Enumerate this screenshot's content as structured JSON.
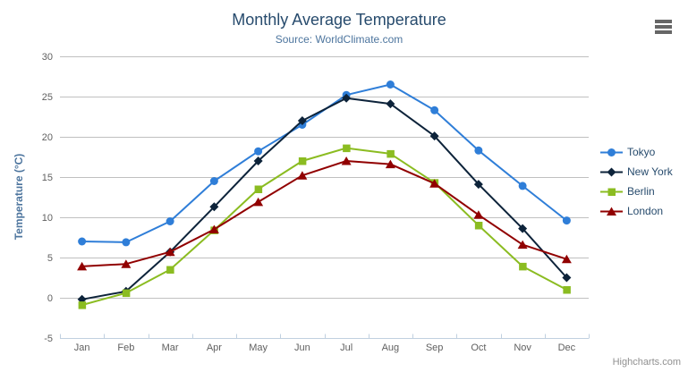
{
  "chart": {
    "credits": "Highcharts.com",
    "menu_icon": "hamburger-menu",
    "colors": {
      "title": "#274b6d",
      "subtitle": "#4d759e",
      "axis_label": "#606060",
      "axis_title": "#4d759e",
      "legend_text": "#274b6d",
      "grid": "#c0c0c0",
      "axis_line": "#c0d0e0",
      "credits": "#909090",
      "menu": "#666666",
      "background": "#ffffff"
    }
  },
  "chart_data": {
    "type": "line",
    "title": "Monthly Average Temperature",
    "subtitle": "Source: WorldClimate.com",
    "categories": [
      "Jan",
      "Feb",
      "Mar",
      "Apr",
      "May",
      "Jun",
      "Jul",
      "Aug",
      "Sep",
      "Oct",
      "Nov",
      "Dec"
    ],
    "xlabel": "",
    "ylabel": "Temperature (°C)",
    "ylim": [
      -5,
      30
    ],
    "yticks": [
      -5,
      0,
      5,
      10,
      15,
      20,
      25,
      30
    ],
    "grid": true,
    "legend_position": "right",
    "series": [
      {
        "name": "Tokyo",
        "color": "#2f7ed8",
        "marker": "circle",
        "values": [
          7.0,
          6.9,
          9.5,
          14.5,
          18.2,
          21.5,
          25.2,
          26.5,
          23.3,
          18.3,
          13.9,
          9.6
        ]
      },
      {
        "name": "New York",
        "color": "#0d233a",
        "marker": "diamond",
        "values": [
          -0.2,
          0.8,
          5.7,
          11.3,
          17.0,
          22.0,
          24.8,
          24.1,
          20.1,
          14.1,
          8.6,
          2.5
        ]
      },
      {
        "name": "Berlin",
        "color": "#8bbc21",
        "marker": "square",
        "values": [
          -0.9,
          0.6,
          3.5,
          8.4,
          13.5,
          17.0,
          18.6,
          17.9,
          14.3,
          9.0,
          3.9,
          1.0
        ]
      },
      {
        "name": "London",
        "color": "#910000",
        "marker": "triangle",
        "values": [
          3.9,
          4.2,
          5.7,
          8.5,
          11.9,
          15.2,
          17.0,
          16.6,
          14.2,
          10.3,
          6.6,
          4.8
        ]
      }
    ]
  }
}
